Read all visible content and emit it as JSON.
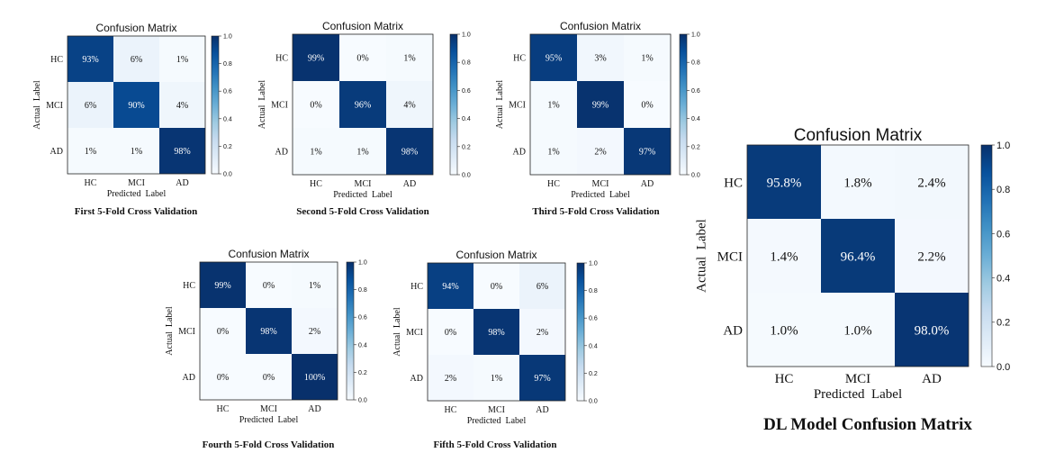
{
  "chart_data": [
    {
      "type": "heatmap",
      "title": "Confusion Matrix",
      "caption": "First 5-Fold Cross Validation",
      "xlabel": "Predicted  Label",
      "ylabel": "Actual  Label",
      "x_categories": [
        "HC",
        "MCI",
        "AD"
      ],
      "y_categories": [
        "HC",
        "MCI",
        "AD"
      ],
      "values": [
        [
          0.93,
          0.06,
          0.01
        ],
        [
          0.06,
          0.9,
          0.04
        ],
        [
          0.01,
          0.01,
          0.98
        ]
      ],
      "cell_labels": [
        [
          "93%",
          "6%",
          "1%"
        ],
        [
          "6%",
          "90%",
          "4%"
        ],
        [
          "1%",
          "1%",
          "98%"
        ]
      ],
      "colorbar": {
        "range": [
          0.0,
          1.0
        ],
        "ticks": [
          "0.0",
          "0.2",
          "0.4",
          "0.6",
          "0.8",
          "1.0"
        ],
        "colormap": "Blues"
      }
    },
    {
      "type": "heatmap",
      "title": "Confusion Matrix",
      "caption": "Second 5-Fold Cross Validation",
      "xlabel": "Predicted  Label",
      "ylabel": "Actual  Label",
      "x_categories": [
        "HC",
        "MCI",
        "AD"
      ],
      "y_categories": [
        "HC",
        "MCI",
        "AD"
      ],
      "values": [
        [
          0.99,
          0.0,
          0.01
        ],
        [
          0.0,
          0.96,
          0.04
        ],
        [
          0.01,
          0.01,
          0.98
        ]
      ],
      "cell_labels": [
        [
          "99%",
          "0%",
          "1%"
        ],
        [
          "0%",
          "96%",
          "4%"
        ],
        [
          "1%",
          "1%",
          "98%"
        ]
      ],
      "colorbar": {
        "range": [
          0.0,
          1.0
        ],
        "ticks": [
          "0.0",
          "0.2",
          "0.4",
          "0.6",
          "0.8",
          "1.0"
        ],
        "colormap": "Blues"
      }
    },
    {
      "type": "heatmap",
      "title": "Confusion Matrix",
      "caption": "Third 5-Fold Cross Validation",
      "xlabel": "Predicted  Label",
      "ylabel": "Actual  Label",
      "x_categories": [
        "HC",
        "MCI",
        "AD"
      ],
      "y_categories": [
        "HC",
        "MCI",
        "AD"
      ],
      "values": [
        [
          0.95,
          0.03,
          0.01
        ],
        [
          0.01,
          0.99,
          0.0
        ],
        [
          0.01,
          0.02,
          0.97
        ]
      ],
      "cell_labels": [
        [
          "95%",
          "3%",
          "1%"
        ],
        [
          "1%",
          "99%",
          "0%"
        ],
        [
          "1%",
          "2%",
          "97%"
        ]
      ],
      "colorbar": {
        "range": [
          0.0,
          1.0
        ],
        "ticks": [
          "0.0",
          "0.2",
          "0.4",
          "0.6",
          "0.8",
          "1.0"
        ],
        "colormap": "Blues"
      }
    },
    {
      "type": "heatmap",
      "title": "Confusion Matrix",
      "caption": "Fourth 5-Fold Cross Validation",
      "xlabel": "Predicted  Label",
      "ylabel": "Actual  Label",
      "x_categories": [
        "HC",
        "MCI",
        "AD"
      ],
      "y_categories": [
        "HC",
        "MCI",
        "AD"
      ],
      "values": [
        [
          0.99,
          0.0,
          0.01
        ],
        [
          0.0,
          0.98,
          0.02
        ],
        [
          0.0,
          0.0,
          1.0
        ]
      ],
      "cell_labels": [
        [
          "99%",
          "0%",
          "1%"
        ],
        [
          "0%",
          "98%",
          "2%"
        ],
        [
          "0%",
          "0%",
          "100%"
        ]
      ],
      "colorbar": {
        "range": [
          0.0,
          1.0
        ],
        "ticks": [
          "0.0",
          "0.2",
          "0.4",
          "0.6",
          "0.8",
          "1.0"
        ],
        "colormap": "Blues"
      }
    },
    {
      "type": "heatmap",
      "title": "Confusion Matrix",
      "caption": "Fifth 5-Fold Cross Validation",
      "xlabel": "Predicted  Label",
      "ylabel": "Actual  Label",
      "x_categories": [
        "HC",
        "MCI",
        "AD"
      ],
      "y_categories": [
        "HC",
        "MCI",
        "AD"
      ],
      "values": [
        [
          0.94,
          0.0,
          0.06
        ],
        [
          0.0,
          0.98,
          0.02
        ],
        [
          0.02,
          0.01,
          0.97
        ]
      ],
      "cell_labels": [
        [
          "94%",
          "0%",
          "6%"
        ],
        [
          "0%",
          "98%",
          "2%"
        ],
        [
          "2%",
          "1%",
          "97%"
        ]
      ],
      "colorbar": {
        "range": [
          0.0,
          1.0
        ],
        "ticks": [
          "0.0",
          "0.2",
          "0.4",
          "0.6",
          "0.8",
          "1.0"
        ],
        "colormap": "Blues"
      }
    },
    {
      "type": "heatmap",
      "title": "Confusion Matrix",
      "caption": "DL Model Confusion Matrix",
      "xlabel": "Predicted  Label",
      "ylabel": "Actual  Label",
      "x_categories": [
        "HC",
        "MCI",
        "AD"
      ],
      "y_categories": [
        "HC",
        "MCI",
        "AD"
      ],
      "values": [
        [
          0.958,
          0.018,
          0.024
        ],
        [
          0.014,
          0.964,
          0.022
        ],
        [
          0.01,
          0.01,
          0.98
        ]
      ],
      "cell_labels": [
        [
          "95.8%",
          "1.8%",
          "2.4%"
        ],
        [
          "1.4%",
          "96.4%",
          "2.2%"
        ],
        [
          "1.0%",
          "1.0%",
          "98.0%"
        ]
      ],
      "colorbar": {
        "range": [
          0.0,
          1.0
        ],
        "ticks": [
          "0.0",
          "0.2",
          "0.4",
          "0.6",
          "0.8",
          "1.0"
        ],
        "colormap": "Blues"
      }
    }
  ]
}
